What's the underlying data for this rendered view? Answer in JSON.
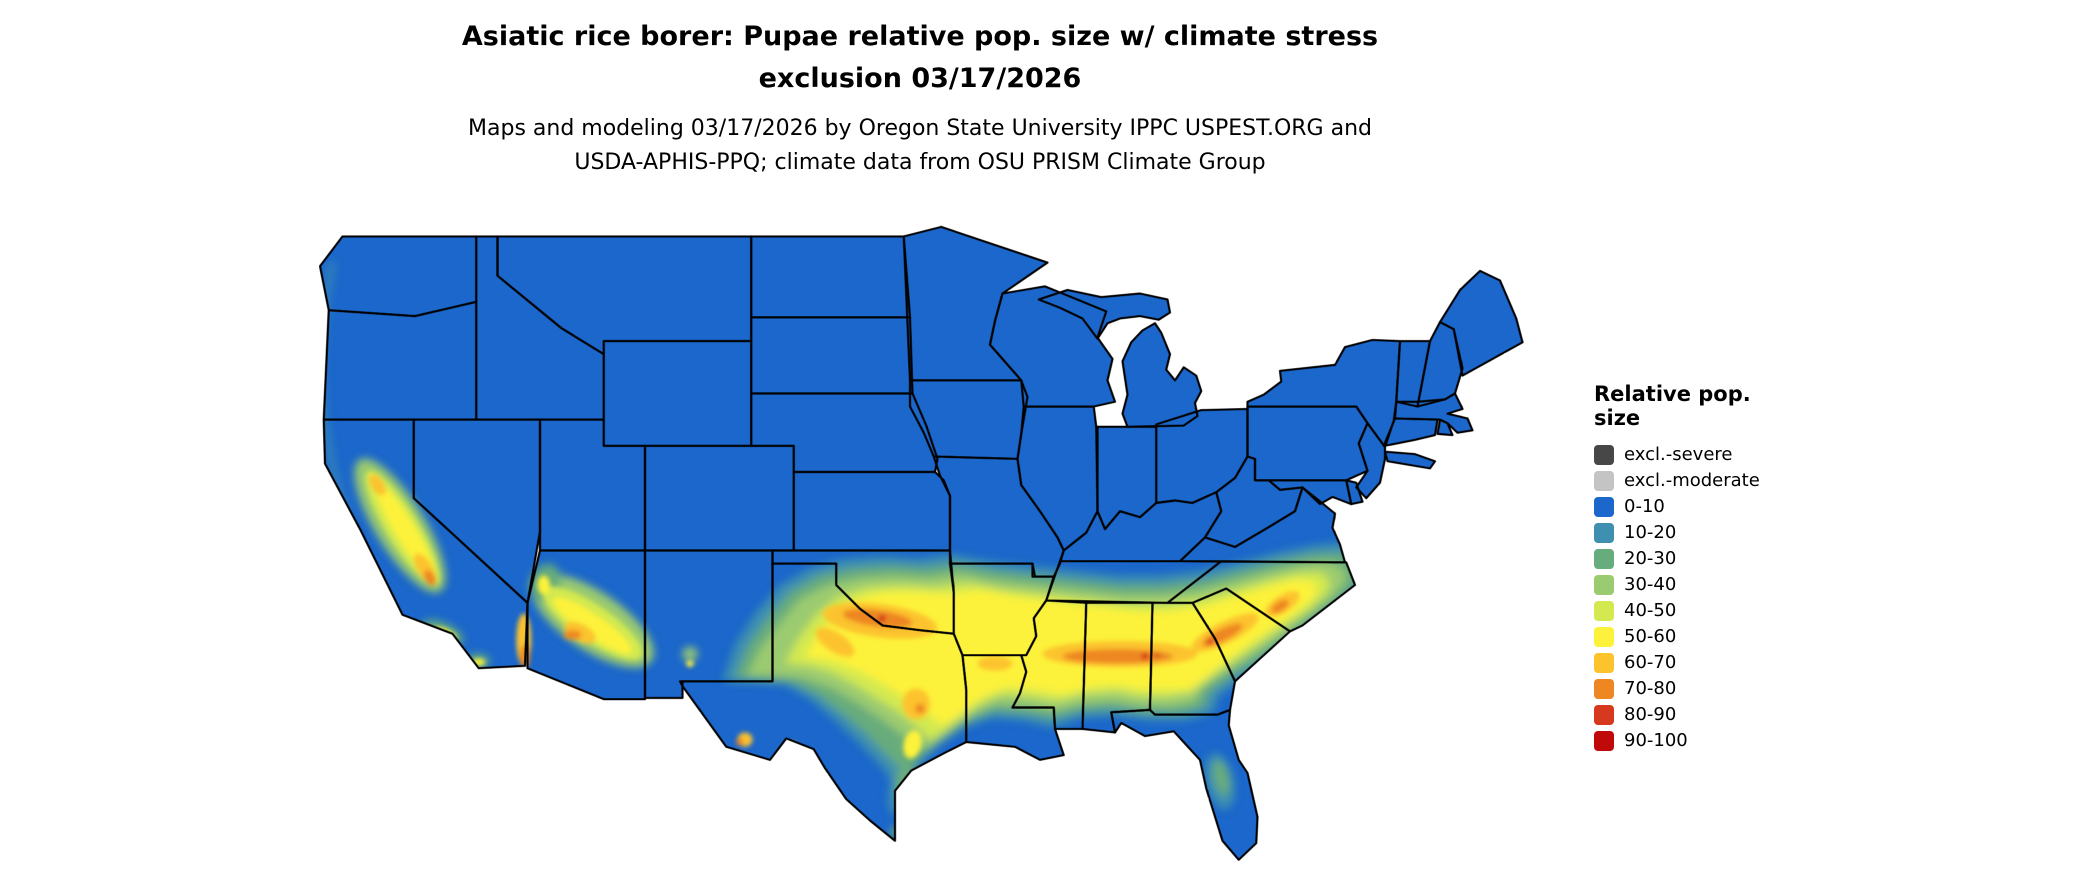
{
  "title": {
    "line1": "Asiatic rice borer: Pupae relative pop. size w/ climate stress",
    "line2": "exclusion 03/17/2026"
  },
  "subtitle": {
    "line1": "Maps and modeling 03/17/2026 by Oregon State University IPPC USPEST.ORG and",
    "line2": "USDA-APHIS-PPQ; climate data from OSU PRISM Climate Group"
  },
  "map": {
    "region": "Contiguous United States",
    "base_value_class": "0-10",
    "base_color": "#1b67cb",
    "state_border_color": "#000000"
  },
  "legend": {
    "title": "Relative pop. size",
    "items": [
      {
        "label": "excl.-severe",
        "color": "#474747"
      },
      {
        "label": "excl.-moderate",
        "color": "#c4c4c4"
      },
      {
        "label": "0-10",
        "color": "#1b67cb"
      },
      {
        "label": "10-20",
        "color": "#3e8fb0"
      },
      {
        "label": "20-30",
        "color": "#67ac7c"
      },
      {
        "label": "30-40",
        "color": "#9bcb70"
      },
      {
        "label": "40-50",
        "color": "#d3e94f"
      },
      {
        "label": "50-60",
        "color": "#fdf23b"
      },
      {
        "label": "60-70",
        "color": "#fcc32d"
      },
      {
        "label": "70-80",
        "color": "#ee8722"
      },
      {
        "label": "80-90",
        "color": "#d6391e"
      },
      {
        "label": "90-100",
        "color": "#c00a0a"
      }
    ]
  }
}
